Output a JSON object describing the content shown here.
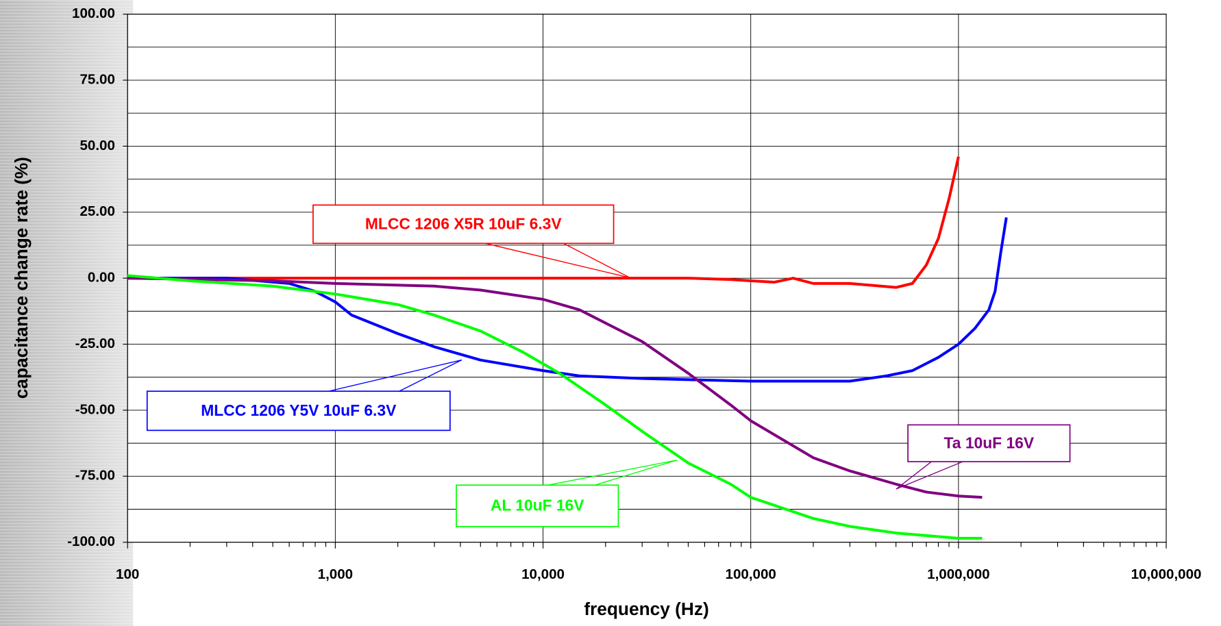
{
  "chart_data": {
    "type": "line",
    "xlabel": "frequency (Hz)",
    "ylabel": "capacitance  change rate (%)",
    "xscale": "log",
    "xlim": [
      100,
      10000000
    ],
    "xticks": [
      100,
      {
        "value": 1000,
        "label": "1,000"
      },
      {
        "value": 10000,
        "label": "10,000"
      },
      {
        "value": 100000,
        "label": "100,000"
      },
      {
        "value": 1000000,
        "label": "1,000,000"
      },
      {
        "value": 10000000,
        "label": "10,000,000"
      }
    ],
    "ylim": [
      -100,
      100
    ],
    "yticks": [
      {
        "value": -100,
        "label": "-100.00"
      },
      {
        "value": -75,
        "label": "-75.00"
      },
      {
        "value": -50,
        "label": "-50.00"
      },
      {
        "value": -25,
        "label": "-25.00"
      },
      {
        "value": 0,
        "label": "0.00"
      },
      {
        "value": 25,
        "label": "25.00"
      },
      {
        "value": 50,
        "label": "50.00"
      },
      {
        "value": 75,
        "label": "75.00"
      },
      {
        "value": 100,
        "label": "100.00"
      }
    ],
    "yminorticks": [
      -87.5,
      -62.5,
      -37.5,
      -12.5,
      12.5,
      37.5,
      62.5,
      87.5
    ],
    "grid": true,
    "series": [
      {
        "name": "MLCC 1206 X5R 10uF 6.3V",
        "color": "#ff0000",
        "x": [
          100,
          1000,
          10000,
          50000,
          80000,
          100000,
          130000,
          160000,
          200000,
          300000,
          500000,
          600000,
          700000,
          800000,
          900000,
          1000000
        ],
        "values": [
          0,
          0,
          0,
          0,
          -0.5,
          -1,
          -1.5,
          0,
          -2,
          -2,
          -3.5,
          -2,
          5,
          15,
          30,
          46
        ]
      },
      {
        "name": "MLCC 1206 Y5V 10uF 6.3V",
        "color": "#0000ff",
        "x": [
          100,
          300,
          600,
          800,
          1000,
          1200,
          2000,
          3000,
          5000,
          10000,
          15000,
          30000,
          100000,
          300000,
          450000,
          600000,
          800000,
          1000000,
          1200000,
          1400000,
          1500000,
          1600000,
          1700000
        ],
        "values": [
          0,
          0,
          -2,
          -5,
          -9,
          -14,
          -21,
          -26,
          -31,
          -35,
          -37,
          -38,
          -39,
          -39,
          -37,
          -35,
          -30,
          -25,
          -19,
          -12,
          -5,
          10,
          23
        ]
      },
      {
        "name": "Ta  10uF 16V",
        "color": "#800080",
        "x": [
          100,
          500,
          1000,
          3000,
          5000,
          10000,
          15000,
          20000,
          30000,
          50000,
          80000,
          100000,
          200000,
          300000,
          500000,
          700000,
          1000000,
          1300000
        ],
        "values": [
          0,
          -1,
          -2,
          -3,
          -4.5,
          -8,
          -12,
          -17,
          -24,
          -36,
          -48,
          -54,
          -68,
          -73,
          -78,
          -81,
          -82.5,
          -83
        ]
      },
      {
        "name": "AL  10uF 16V",
        "color": "#00ff00",
        "x": [
          100,
          200,
          500,
          1000,
          2000,
          3000,
          5000,
          8000,
          12000,
          20000,
          30000,
          50000,
          80000,
          100000,
          200000,
          300000,
          500000,
          1000000,
          1300000
        ],
        "values": [
          1,
          -1,
          -3,
          -6,
          -10,
          -14,
          -20,
          -28,
          -36,
          -48,
          -58,
          -70,
          -78,
          -83,
          -91,
          -94,
          -96.5,
          -98.5,
          -98.5
        ]
      }
    ]
  }
}
